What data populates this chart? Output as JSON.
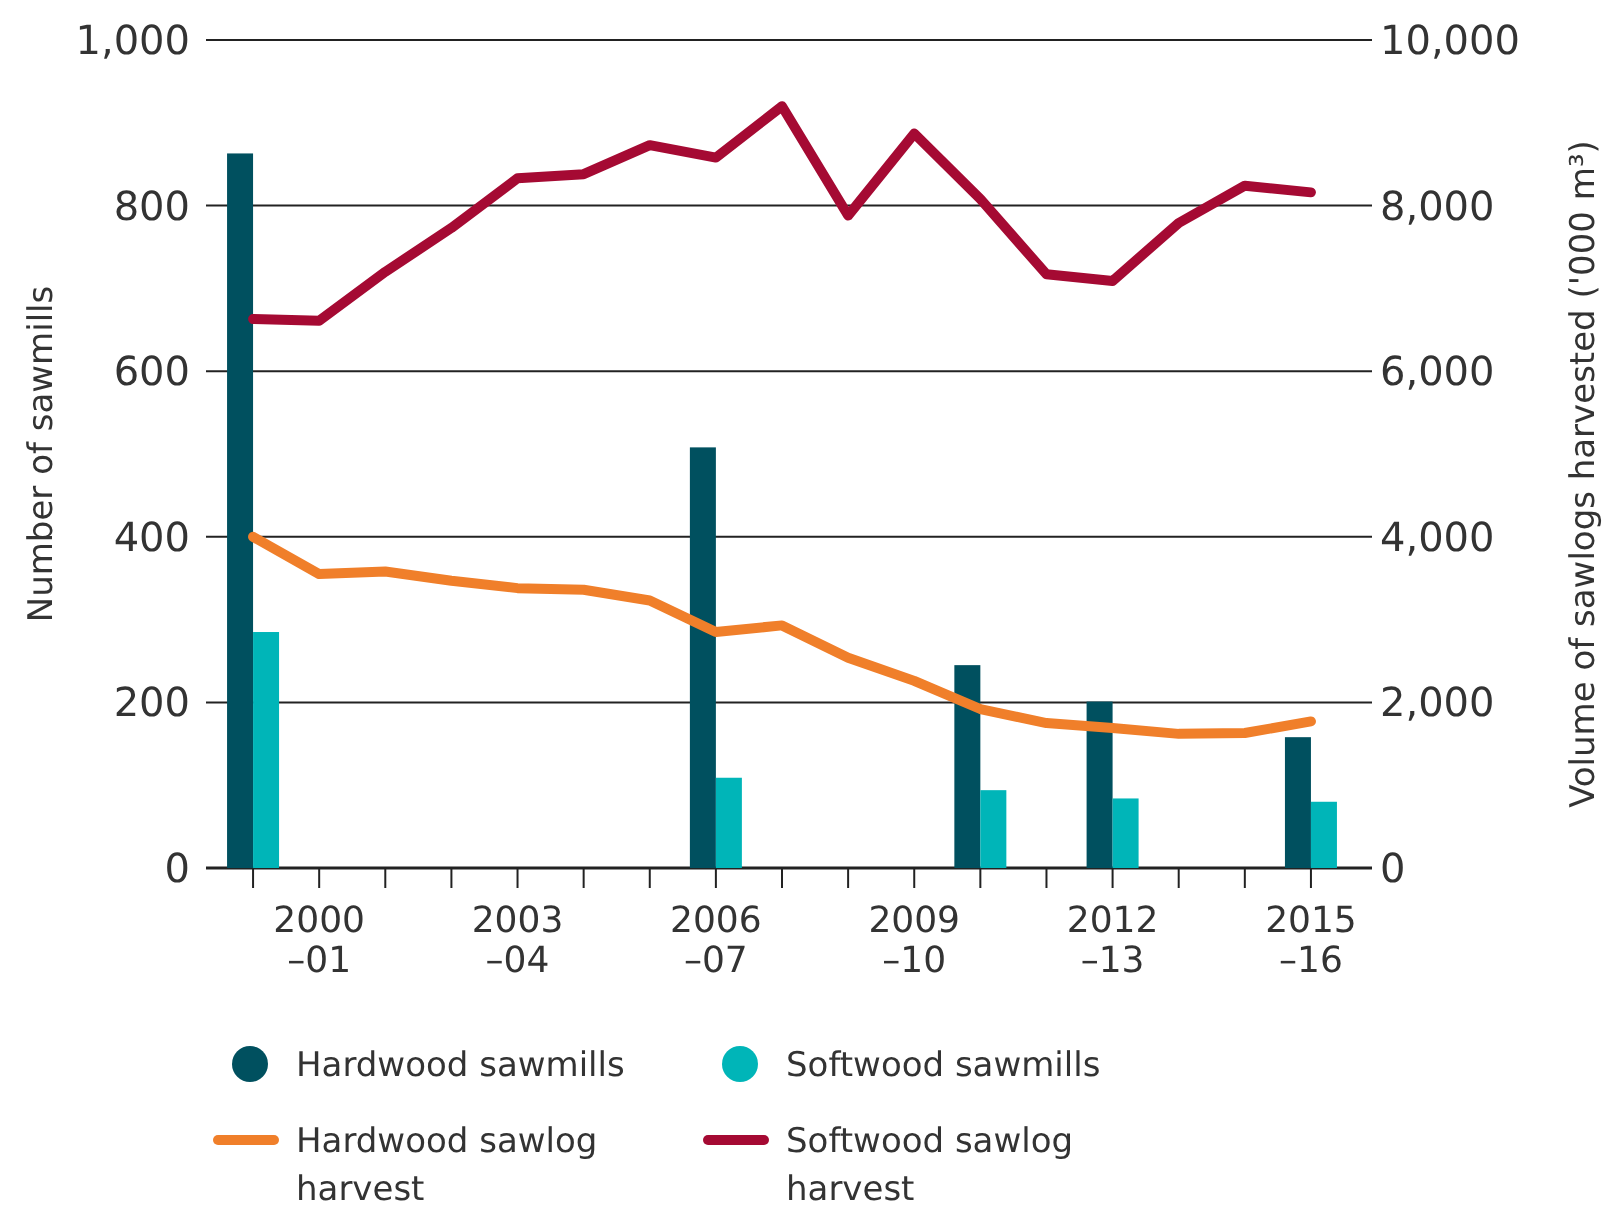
{
  "chart_data": {
    "type": "bar",
    "ylabel": "Number of sawmills",
    "y2label": "Volume of sawlogs harvested ('000 m³)",
    "categories": [
      null,
      "2000\n–01",
      null,
      null,
      "2003\n–04",
      null,
      null,
      "2006\n–07",
      null,
      null,
      "2009\n–10",
      null,
      null,
      "2012\n–13",
      null,
      null,
      "2015\n–16"
    ],
    "series": [
      {
        "name": "Hardwood sawmills",
        "color": "#00505f",
        "values": [
          863,
          null,
          null,
          null,
          null,
          null,
          null,
          508,
          null,
          null,
          null,
          245,
          null,
          201,
          null,
          null,
          158
        ]
      },
      {
        "name": "Softwood sawmills",
        "color": "#00b5b8",
        "values": [
          285,
          null,
          null,
          null,
          null,
          null,
          null,
          109,
          null,
          null,
          null,
          94,
          null,
          84,
          null,
          null,
          80
        ]
      },
      {
        "name": "Hardwood sawlog harvest",
        "type": "line",
        "axis": "y2",
        "color": "#f07f2a",
        "values": [
          4000,
          3550,
          3580,
          3470,
          3380,
          3360,
          3230,
          2850,
          2930,
          2540,
          2260,
          1920,
          1750,
          1690,
          1620,
          1630,
          1770
        ]
      },
      {
        "name": "Softwood sawlog harvest",
        "type": "line",
        "axis": "y2",
        "color": "#a50a33",
        "values": [
          6630,
          6610,
          7200,
          7730,
          8330,
          8380,
          8730,
          8580,
          9200,
          7880,
          8870,
          8080,
          7170,
          7090,
          7790,
          8240,
          8160
        ]
      }
    ],
    "ylim": [
      0,
      1000
    ],
    "yticks": [
      0,
      200,
      400,
      600,
      800,
      {
        "value": 1000,
        "label": "1,000"
      }
    ],
    "y2lim": [
      0,
      10000
    ],
    "y2ticks": [
      0,
      {
        "value": 2000,
        "label": "2,000"
      },
      {
        "value": 4000,
        "label": "4,000"
      },
      {
        "value": 6000,
        "label": "6,000"
      },
      {
        "value": 8000,
        "label": "8,000"
      },
      {
        "value": 10000,
        "label": "10,000"
      }
    ],
    "grid": "y",
    "legend": "bottom",
    "line_style": "solid",
    "marker": "none"
  }
}
